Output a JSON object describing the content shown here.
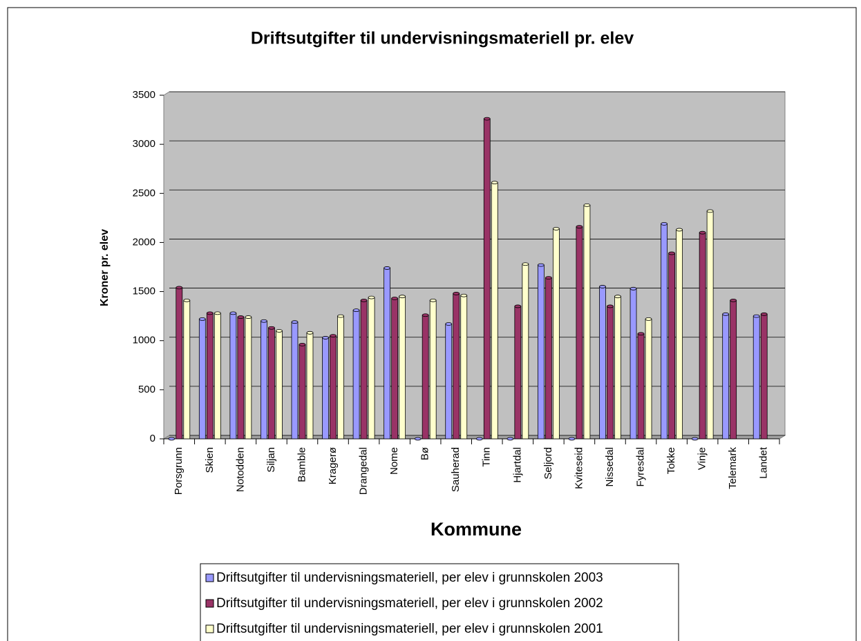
{
  "chart_data": {
    "type": "bar",
    "title": "Driftsutgifter til undervisningsmateriell pr. elev",
    "x_label": "Kommune",
    "y_label": "Kroner pr. elev",
    "categories": [
      "Porsgrunn",
      "Skien",
      "Notodden",
      "Siljan",
      "Bamble",
      "Kragerø",
      "Drangedal",
      "Nome",
      "Bø",
      "Sauherad",
      "Tinn",
      "Hjartdal",
      "Seljord",
      "Kviteseid",
      "Nissedal",
      "Fyresdal",
      "Tokke",
      "Vinje",
      "Telemark",
      "Landet"
    ],
    "series": [
      {
        "name": "Driftsutgifter til undervisningsmateriell, per elev i grunnskolen 2003",
        "color": "#9999ff",
        "values": [
          0,
          1220,
          1280,
          1200,
          1190,
          1030,
          1310,
          1740,
          0,
          1170,
          0,
          0,
          1770,
          0,
          1550,
          1530,
          2190,
          0,
          1270,
          1250
        ]
      },
      {
        "name": "Driftsutgifter til undervisningsmateriell, per elev i grunnskolen 2002",
        "color": "#993366",
        "values": [
          1540,
          1280,
          1240,
          1130,
          960,
          1050,
          1410,
          1430,
          1260,
          1480,
          3260,
          1350,
          1640,
          2160,
          1350,
          1070,
          1890,
          2100,
          1410,
          1270
        ]
      },
      {
        "name": "Driftsutgifter til undervisningsmateriell, per elev i grunnskolen 2001",
        "color": "#ffffcc",
        "values": [
          1410,
          1280,
          1240,
          1100,
          1080,
          1250,
          1440,
          1450,
          1410,
          1460,
          2610,
          1780,
          2140,
          2380,
          1450,
          1220,
          2130,
          2320,
          null,
          null
        ]
      }
    ],
    "ylim": [
      0,
      3500
    ],
    "yticks": [
      0,
      500,
      1000,
      1500,
      2000,
      2500,
      3000,
      3500
    ],
    "grid": true
  }
}
